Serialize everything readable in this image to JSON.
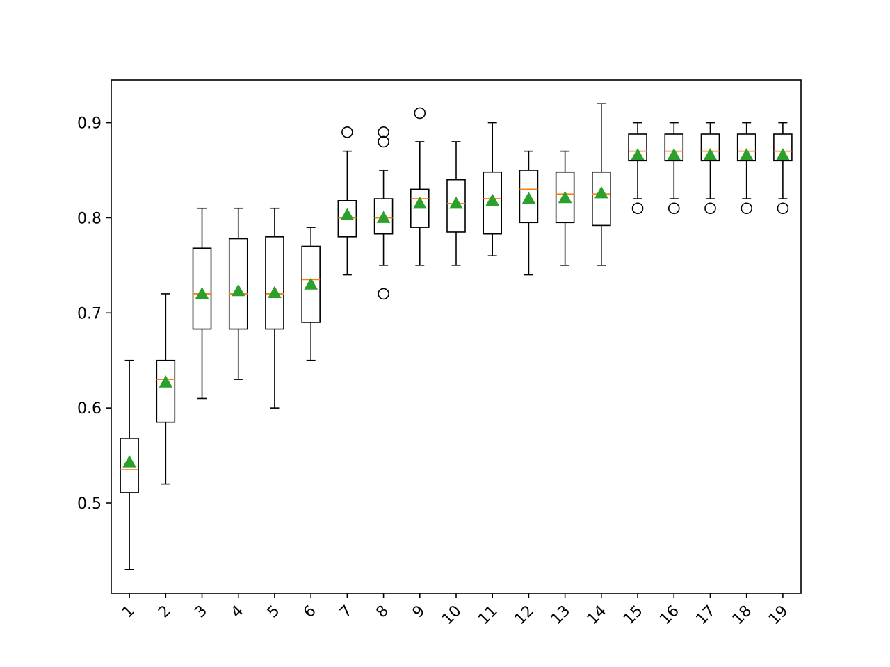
{
  "chart_data": {
    "type": "boxplot",
    "categories": [
      "1",
      "2",
      "3",
      "4",
      "5",
      "6",
      "7",
      "8",
      "9",
      "10",
      "11",
      "12",
      "13",
      "14",
      "15",
      "16",
      "17",
      "18",
      "19"
    ],
    "ylim": [
      0.405,
      0.945
    ],
    "yticks": [
      0.5,
      0.6,
      0.7,
      0.8,
      0.9
    ],
    "ytick_labels": [
      "0.5",
      "0.6",
      "0.7",
      "0.8",
      "0.9"
    ],
    "xtick_rotation": 45,
    "grid": false,
    "boxes": [
      {
        "whisker_low": 0.43,
        "q1": 0.511,
        "median": 0.535,
        "q3": 0.568,
        "whisker_high": 0.65,
        "mean": 0.543,
        "fliers": []
      },
      {
        "whisker_low": 0.52,
        "q1": 0.585,
        "median": 0.63,
        "q3": 0.65,
        "whisker_high": 0.72,
        "mean": 0.627,
        "fliers": []
      },
      {
        "whisker_low": 0.61,
        "q1": 0.683,
        "median": 0.72,
        "q3": 0.768,
        "whisker_high": 0.81,
        "mean": 0.72,
        "fliers": []
      },
      {
        "whisker_low": 0.63,
        "q1": 0.683,
        "median": 0.72,
        "q3": 0.778,
        "whisker_high": 0.81,
        "mean": 0.723,
        "fliers": []
      },
      {
        "whisker_low": 0.6,
        "q1": 0.683,
        "median": 0.72,
        "q3": 0.78,
        "whisker_high": 0.81,
        "mean": 0.721,
        "fliers": []
      },
      {
        "whisker_low": 0.65,
        "q1": 0.69,
        "median": 0.735,
        "q3": 0.77,
        "whisker_high": 0.79,
        "mean": 0.73,
        "fliers": []
      },
      {
        "whisker_low": 0.74,
        "q1": 0.78,
        "median": 0.8,
        "q3": 0.818,
        "whisker_high": 0.87,
        "mean": 0.803,
        "fliers": [
          0.89
        ]
      },
      {
        "whisker_low": 0.75,
        "q1": 0.783,
        "median": 0.8,
        "q3": 0.82,
        "whisker_high": 0.85,
        "mean": 0.8,
        "fliers": [
          0.72,
          0.88,
          0.89
        ]
      },
      {
        "whisker_low": 0.75,
        "q1": 0.79,
        "median": 0.82,
        "q3": 0.83,
        "whisker_high": 0.88,
        "mean": 0.815,
        "fliers": [
          0.91
        ]
      },
      {
        "whisker_low": 0.75,
        "q1": 0.785,
        "median": 0.815,
        "q3": 0.84,
        "whisker_high": 0.88,
        "mean": 0.815,
        "fliers": []
      },
      {
        "whisker_low": 0.76,
        "q1": 0.783,
        "median": 0.82,
        "q3": 0.848,
        "whisker_high": 0.9,
        "mean": 0.818,
        "fliers": []
      },
      {
        "whisker_low": 0.74,
        "q1": 0.795,
        "median": 0.83,
        "q3": 0.85,
        "whisker_high": 0.87,
        "mean": 0.82,
        "fliers": []
      },
      {
        "whisker_low": 0.75,
        "q1": 0.795,
        "median": 0.825,
        "q3": 0.848,
        "whisker_high": 0.87,
        "mean": 0.821,
        "fliers": []
      },
      {
        "whisker_low": 0.75,
        "q1": 0.792,
        "median": 0.825,
        "q3": 0.848,
        "whisker_high": 0.92,
        "mean": 0.826,
        "fliers": []
      },
      {
        "whisker_low": 0.82,
        "q1": 0.86,
        "median": 0.87,
        "q3": 0.888,
        "whisker_high": 0.9,
        "mean": 0.866,
        "fliers": [
          0.81
        ]
      },
      {
        "whisker_low": 0.82,
        "q1": 0.86,
        "median": 0.87,
        "q3": 0.888,
        "whisker_high": 0.9,
        "mean": 0.866,
        "fliers": [
          0.81
        ]
      },
      {
        "whisker_low": 0.82,
        "q1": 0.86,
        "median": 0.87,
        "q3": 0.888,
        "whisker_high": 0.9,
        "mean": 0.866,
        "fliers": [
          0.81
        ]
      },
      {
        "whisker_low": 0.82,
        "q1": 0.86,
        "median": 0.87,
        "q3": 0.888,
        "whisker_high": 0.9,
        "mean": 0.866,
        "fliers": [
          0.81
        ]
      },
      {
        "whisker_low": 0.82,
        "q1": 0.86,
        "median": 0.87,
        "q3": 0.888,
        "whisker_high": 0.9,
        "mean": 0.866,
        "fliers": [
          0.81
        ]
      }
    ],
    "colors": {
      "box": "#000000",
      "median": "#ff7f0e",
      "mean": "#2ca02c",
      "flier": "#000000"
    }
  }
}
